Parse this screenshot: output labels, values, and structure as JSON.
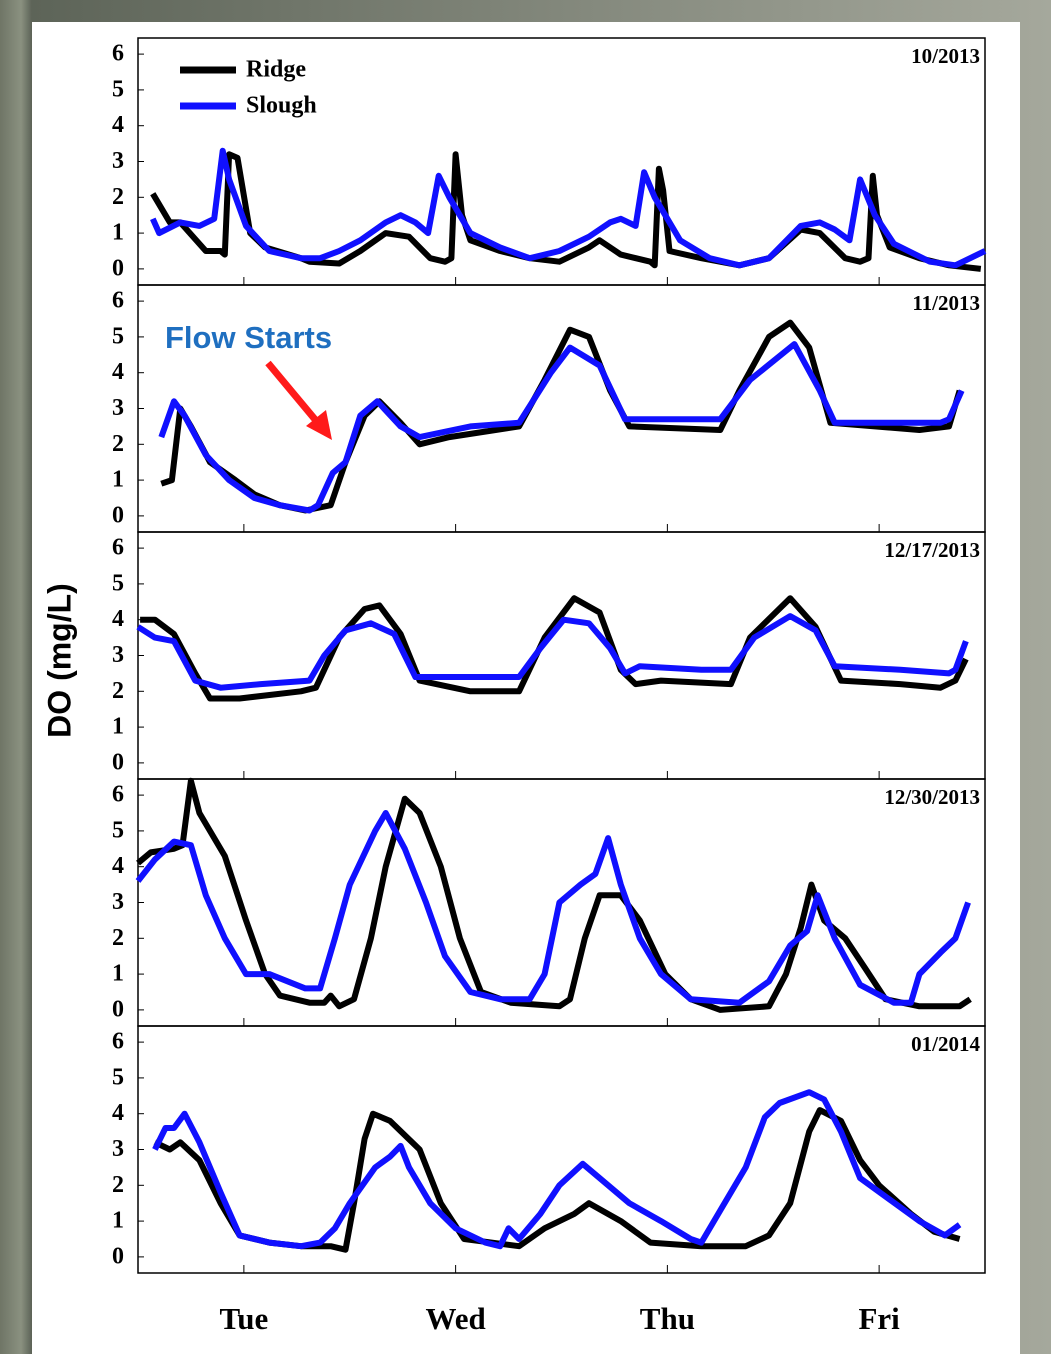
{
  "chart_data": [
    {
      "type": "line",
      "title": "10/2013",
      "xlim": [
        0.5,
        4.5
      ],
      "ylim": [
        -0.45,
        6.45
      ],
      "yticks": [
        0,
        1,
        2,
        3,
        4,
        5,
        6
      ],
      "legend": "top left",
      "series": [
        {
          "name": "Ridge",
          "color": "#000000",
          "x": [
            0.57,
            0.65,
            0.7,
            0.82,
            0.86,
            0.89,
            0.91,
            0.93,
            0.97,
            1.03,
            1.1,
            1.27,
            1.31,
            1.45,
            1.55,
            1.67,
            1.78,
            1.88,
            1.95,
            1.98,
            2.0,
            2.03,
            2.07,
            2.21,
            2.35,
            2.49,
            2.63,
            2.68,
            2.78,
            2.92,
            2.94,
            2.96,
            2.98,
            3.01,
            3.16,
            3.34,
            3.48,
            3.63,
            3.72,
            3.84,
            3.91,
            3.95,
            3.97,
            3.99,
            4.05,
            4.19,
            4.33,
            4.48
          ],
          "values": [
            2.1,
            1.3,
            1.3,
            0.5,
            0.5,
            0.5,
            0.4,
            3.2,
            3.1,
            1.0,
            0.6,
            0.3,
            0.2,
            0.15,
            0.5,
            1.0,
            0.9,
            0.3,
            0.2,
            0.3,
            3.2,
            1.5,
            0.8,
            0.5,
            0.3,
            0.2,
            0.6,
            0.8,
            0.4,
            0.2,
            0.1,
            2.8,
            2.2,
            0.5,
            0.3,
            0.1,
            0.3,
            1.1,
            1.0,
            0.3,
            0.2,
            0.3,
            2.6,
            1.5,
            0.6,
            0.3,
            0.1,
            0.0
          ]
        },
        {
          "name": "Slough",
          "color": "#1010ff",
          "x": [
            0.57,
            0.6,
            0.7,
            0.79,
            0.86,
            0.9,
            0.93,
            1.01,
            1.12,
            1.27,
            1.36,
            1.45,
            1.55,
            1.67,
            1.74,
            1.81,
            1.87,
            1.92,
            1.97,
            2.07,
            2.21,
            2.35,
            2.49,
            2.63,
            2.73,
            2.78,
            2.85,
            2.89,
            2.94,
            3.06,
            3.2,
            3.34,
            3.48,
            3.63,
            3.72,
            3.79,
            3.86,
            3.91,
            3.98,
            4.07,
            4.24,
            4.36,
            4.5
          ],
          "values": [
            1.4,
            1.0,
            1.3,
            1.2,
            1.4,
            3.3,
            2.5,
            1.2,
            0.5,
            0.3,
            0.3,
            0.5,
            0.8,
            1.3,
            1.5,
            1.3,
            1.0,
            2.6,
            2.0,
            1.0,
            0.6,
            0.3,
            0.5,
            0.9,
            1.3,
            1.4,
            1.2,
            2.7,
            2.0,
            0.8,
            0.3,
            0.1,
            0.3,
            1.2,
            1.3,
            1.1,
            0.8,
            2.5,
            1.5,
            0.7,
            0.2,
            0.1,
            0.5
          ]
        }
      ]
    },
    {
      "type": "line",
      "title": "11/2013",
      "annotation": "Flow Starts",
      "xlim": [
        0.5,
        4.5
      ],
      "ylim": [
        -0.45,
        6.45
      ],
      "yticks": [
        0,
        1,
        2,
        3,
        4,
        5,
        6
      ],
      "series": [
        {
          "color": "#000000",
          "x": [
            0.61,
            0.66,
            0.7,
            0.75,
            0.84,
            0.96,
            1.05,
            1.17,
            1.29,
            1.41,
            1.48,
            1.57,
            1.64,
            1.74,
            1.83,
            1.97,
            2.3,
            2.42,
            2.54,
            2.63,
            2.73,
            2.82,
            3.25,
            3.34,
            3.48,
            3.58,
            3.67,
            3.77,
            4.19,
            4.33,
            4.38
          ],
          "values": [
            0.9,
            1.0,
            3.0,
            2.5,
            1.5,
            1.0,
            0.6,
            0.3,
            0.15,
            0.3,
            1.5,
            2.8,
            3.2,
            2.6,
            2.0,
            2.2,
            2.5,
            3.8,
            5.2,
            5.0,
            3.5,
            2.5,
            2.4,
            3.5,
            5.0,
            5.4,
            4.7,
            2.6,
            2.4,
            2.5,
            3.5
          ]
        },
        {
          "color": "#1010ff",
          "x": [
            0.61,
            0.67,
            0.72,
            0.82,
            0.93,
            1.05,
            1.17,
            1.31,
            1.35,
            1.42,
            1.48,
            1.55,
            1.63,
            1.74,
            1.83,
            2.07,
            2.3,
            2.45,
            2.54,
            2.68,
            2.8,
            3.25,
            3.39,
            3.6,
            3.72,
            3.79,
            4.29,
            4.33,
            4.39
          ],
          "values": [
            2.2,
            3.2,
            2.8,
            1.7,
            1.0,
            0.5,
            0.3,
            0.15,
            0.3,
            1.2,
            1.5,
            2.8,
            3.2,
            2.5,
            2.2,
            2.5,
            2.6,
            4.0,
            4.7,
            4.2,
            2.7,
            2.7,
            3.8,
            4.8,
            3.5,
            2.6,
            2.6,
            2.7,
            3.5
          ]
        }
      ]
    },
    {
      "type": "line",
      "title": "12/17/2013",
      "ylabel": "DO (mg/L)",
      "xlim": [
        0.5,
        4.5
      ],
      "ylim": [
        -0.45,
        6.45
      ],
      "yticks": [
        0,
        1,
        2,
        3,
        4,
        5,
        6
      ],
      "series": [
        {
          "color": "#000000",
          "x": [
            0.51,
            0.58,
            0.67,
            0.77,
            0.84,
            0.98,
            1.27,
            1.34,
            1.45,
            1.57,
            1.64,
            1.74,
            1.83,
            2.07,
            2.3,
            2.42,
            2.56,
            2.68,
            2.78,
            2.85,
            2.97,
            3.3,
            3.39,
            3.58,
            3.7,
            3.82,
            4.1,
            4.29,
            4.36,
            4.41
          ],
          "values": [
            4.0,
            4.0,
            3.6,
            2.5,
            1.8,
            1.8,
            2.0,
            2.1,
            3.5,
            4.3,
            4.4,
            3.6,
            2.3,
            2.0,
            2.0,
            3.5,
            4.6,
            4.2,
            2.6,
            2.2,
            2.3,
            2.2,
            3.5,
            4.6,
            3.8,
            2.3,
            2.2,
            2.1,
            2.3,
            2.9
          ]
        },
        {
          "color": "#1010ff",
          "x": [
            0.5,
            0.58,
            0.67,
            0.77,
            0.89,
            1.08,
            1.31,
            1.38,
            1.48,
            1.6,
            1.71,
            1.81,
            2.3,
            2.4,
            2.51,
            2.63,
            2.73,
            2.8,
            2.87,
            3.16,
            3.3,
            3.41,
            3.58,
            3.7,
            3.79,
            4.1,
            4.33,
            4.36,
            4.41
          ],
          "values": [
            3.8,
            3.5,
            3.4,
            2.3,
            2.1,
            2.2,
            2.3,
            3.0,
            3.7,
            3.9,
            3.6,
            2.4,
            2.4,
            3.2,
            4.0,
            3.9,
            3.2,
            2.5,
            2.7,
            2.6,
            2.6,
            3.5,
            4.1,
            3.7,
            2.7,
            2.6,
            2.5,
            2.6,
            3.4
          ]
        }
      ]
    },
    {
      "type": "line",
      "title": "12/30/2013",
      "xlim": [
        0.5,
        4.5
      ],
      "ylim": [
        -0.45,
        6.45
      ],
      "yticks": [
        0,
        1,
        2,
        3,
        4,
        5,
        6
      ],
      "series": [
        {
          "color": "#000000",
          "x": [
            0.5,
            0.56,
            0.67,
            0.71,
            0.75,
            0.79,
            0.91,
            1.01,
            1.1,
            1.17,
            1.31,
            1.38,
            1.41,
            1.45,
            1.52,
            1.6,
            1.67,
            1.76,
            1.83,
            1.93,
            2.02,
            2.12,
            2.26,
            2.49,
            2.54,
            2.61,
            2.68,
            2.78,
            2.87,
            2.99,
            3.11,
            3.25,
            3.48,
            3.56,
            3.63,
            3.68,
            3.74,
            3.84,
            3.93,
            4.03,
            4.19,
            4.38,
            4.43
          ],
          "values": [
            4.1,
            4.4,
            4.5,
            4.6,
            6.4,
            5.5,
            4.3,
            2.5,
            1.0,
            0.4,
            0.2,
            0.2,
            0.4,
            0.1,
            0.3,
            2.0,
            4.0,
            5.9,
            5.5,
            4.0,
            2.0,
            0.5,
            0.2,
            0.1,
            0.3,
            2.0,
            3.2,
            3.2,
            2.5,
            1.0,
            0.3,
            0.0,
            0.1,
            1.0,
            2.3,
            3.5,
            2.5,
            2.0,
            1.2,
            0.3,
            0.1,
            0.1,
            0.3
          ]
        },
        {
          "color": "#1010ff",
          "x": [
            0.5,
            0.58,
            0.67,
            0.75,
            0.82,
            0.91,
            1.01,
            1.12,
            1.29,
            1.36,
            1.43,
            1.5,
            1.62,
            1.67,
            1.76,
            1.86,
            1.95,
            2.07,
            2.21,
            2.35,
            2.42,
            2.49,
            2.59,
            2.66,
            2.72,
            2.78,
            2.87,
            2.97,
            3.11,
            3.34,
            3.48,
            3.58,
            3.66,
            3.71,
            3.79,
            3.91,
            4.07,
            4.15,
            4.19,
            4.29,
            4.36,
            4.42
          ],
          "values": [
            3.6,
            4.2,
            4.7,
            4.6,
            3.2,
            2.0,
            1.0,
            1.0,
            0.6,
            0.6,
            2.0,
            3.5,
            5.0,
            5.5,
            4.5,
            3.0,
            1.5,
            0.5,
            0.3,
            0.3,
            1.0,
            3.0,
            3.5,
            3.8,
            4.8,
            3.5,
            2.0,
            1.0,
            0.3,
            0.2,
            0.8,
            1.8,
            2.2,
            3.2,
            2.0,
            0.7,
            0.2,
            0.2,
            1.0,
            1.6,
            2.0,
            3.0
          ]
        }
      ]
    },
    {
      "type": "line",
      "title": "01/2014",
      "xlim": [
        0.5,
        4.5
      ],
      "ylim": [
        -0.45,
        6.45
      ],
      "yticks": [
        0,
        1,
        2,
        3,
        4,
        5,
        6
      ],
      "xticks": [
        {
          "value": 1,
          "label": "Tue"
        },
        {
          "value": 2,
          "label": "Wed"
        },
        {
          "value": 3,
          "label": "Thu"
        },
        {
          "value": 4,
          "label": "Fri"
        }
      ],
      "series": [
        {
          "color": "#000000",
          "x": [
            0.58,
            0.65,
            0.7,
            0.79,
            0.89,
            0.98,
            1.12,
            1.27,
            1.41,
            1.48,
            1.52,
            1.57,
            1.61,
            1.69,
            1.83,
            1.93,
            2.04,
            2.3,
            2.42,
            2.56,
            2.63,
            2.78,
            2.92,
            3.16,
            3.37,
            3.48,
            3.58,
            3.67,
            3.72,
            3.82,
            3.91,
            4.0,
            4.15,
            4.26,
            4.38
          ],
          "values": [
            3.2,
            3.0,
            3.2,
            2.7,
            1.5,
            0.6,
            0.4,
            0.3,
            0.3,
            0.2,
            1.5,
            3.3,
            4.0,
            3.8,
            3.0,
            1.5,
            0.5,
            0.3,
            0.8,
            1.2,
            1.5,
            1.0,
            0.4,
            0.3,
            0.3,
            0.6,
            1.5,
            3.5,
            4.1,
            3.8,
            2.7,
            2.0,
            1.2,
            0.7,
            0.5
          ]
        },
        {
          "color": "#1010ff",
          "x": [
            0.58,
            0.63,
            0.67,
            0.72,
            0.79,
            0.89,
            0.98,
            1.12,
            1.27,
            1.36,
            1.43,
            1.5,
            1.62,
            1.69,
            1.74,
            1.78,
            1.88,
            2.0,
            2.14,
            2.21,
            2.25,
            2.3,
            2.4,
            2.49,
            2.6,
            2.68,
            2.82,
            2.97,
            3.11,
            3.16,
            3.25,
            3.37,
            3.46,
            3.53,
            3.67,
            3.74,
            3.82,
            3.91,
            4.05,
            4.19,
            4.31,
            4.38
          ],
          "values": [
            3.0,
            3.6,
            3.6,
            4.0,
            3.2,
            1.8,
            0.6,
            0.4,
            0.3,
            0.4,
            0.8,
            1.5,
            2.5,
            2.8,
            3.1,
            2.5,
            1.5,
            0.8,
            0.4,
            0.3,
            0.8,
            0.5,
            1.2,
            2.0,
            2.6,
            2.2,
            1.5,
            1.0,
            0.5,
            0.4,
            1.3,
            2.5,
            3.9,
            4.3,
            4.6,
            4.4,
            3.5,
            2.2,
            1.6,
            1.0,
            0.6,
            0.9
          ]
        }
      ]
    }
  ]
}
